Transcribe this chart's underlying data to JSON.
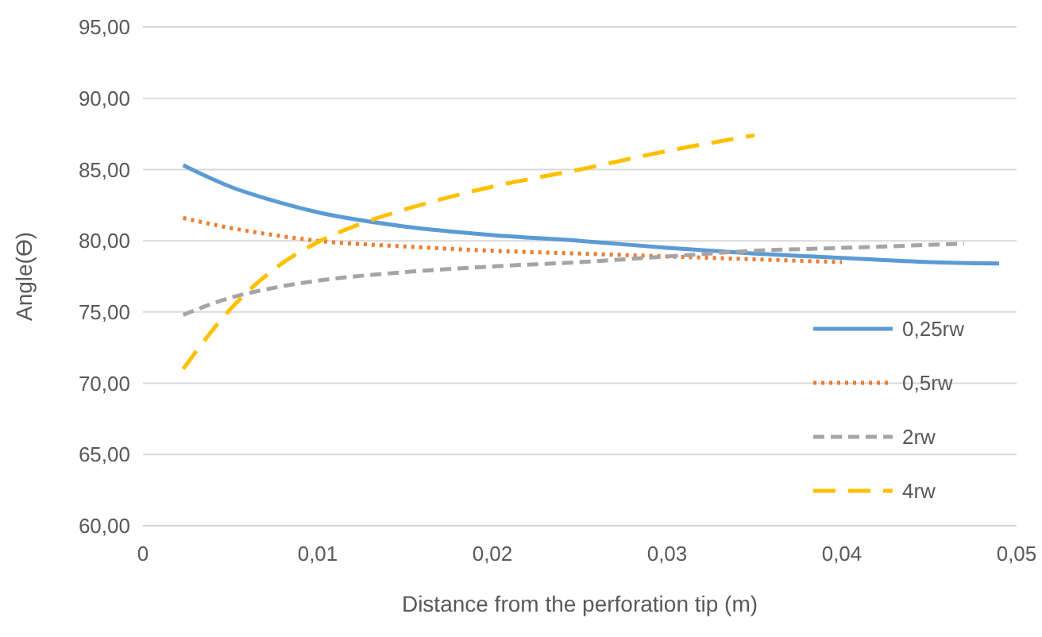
{
  "chart_data": {
    "type": "line",
    "xlabel": "Distance from the perforation tip (m)",
    "ylabel": "Angle(Ɵ)",
    "xlim": [
      0,
      0.05
    ],
    "ylim": [
      60,
      95
    ],
    "xticks": [
      {
        "value": 0,
        "label": "0"
      },
      {
        "value": 0.01,
        "label": "0,01"
      },
      {
        "value": 0.02,
        "label": "0,02"
      },
      {
        "value": 0.03,
        "label": "0,03"
      },
      {
        "value": 0.04,
        "label": "0,04"
      },
      {
        "value": 0.05,
        "label": "0,05"
      }
    ],
    "yticks": [
      {
        "value": 60,
        "label": "60,00"
      },
      {
        "value": 65,
        "label": "65,00"
      },
      {
        "value": 70,
        "label": "70,00"
      },
      {
        "value": 75,
        "label": "75,00"
      },
      {
        "value": 80,
        "label": "80,00"
      },
      {
        "value": 85,
        "label": "85,00"
      },
      {
        "value": 90,
        "label": "90,00"
      },
      {
        "value": 95,
        "label": "95,00"
      }
    ],
    "grid": "y",
    "legend": "right",
    "series": [
      {
        "name": "0,25rw",
        "color": "#5b9bd5",
        "line_style": "solid",
        "x": [
          0.0023,
          0.005,
          0.0075,
          0.01,
          0.015,
          0.02,
          0.025,
          0.03,
          0.035,
          0.04,
          0.045,
          0.049
        ],
        "values": [
          85.3,
          83.8,
          82.8,
          82.0,
          81.0,
          80.4,
          80.0,
          79.5,
          79.1,
          78.8,
          78.5,
          78.4
        ]
      },
      {
        "name": "0,5rw",
        "color": "#ed7d31",
        "line_style": "dotted",
        "x": [
          0.0023,
          0.005,
          0.0075,
          0.01,
          0.015,
          0.02,
          0.025,
          0.03,
          0.035,
          0.04
        ],
        "values": [
          81.6,
          80.9,
          80.4,
          80.0,
          79.6,
          79.3,
          79.1,
          78.9,
          78.7,
          78.5
        ]
      },
      {
        "name": "2rw",
        "color": "#a5a5a5",
        "line_style": "dashed",
        "x": [
          0.0023,
          0.005,
          0.0075,
          0.01,
          0.015,
          0.02,
          0.025,
          0.03,
          0.035,
          0.04,
          0.047
        ],
        "values": [
          74.8,
          76.0,
          76.7,
          77.2,
          77.8,
          78.2,
          78.5,
          78.9,
          79.3,
          79.5,
          79.8
        ]
      },
      {
        "name": "4rw",
        "color": "#ffc000",
        "line_style": "dashed",
        "x": [
          0.0023,
          0.005,
          0.0075,
          0.01,
          0.0125,
          0.015,
          0.02,
          0.025,
          0.03,
          0.035
        ],
        "values": [
          71.0,
          75.2,
          78.0,
          79.9,
          81.2,
          82.2,
          83.8,
          85.0,
          86.3,
          87.4
        ]
      }
    ]
  }
}
